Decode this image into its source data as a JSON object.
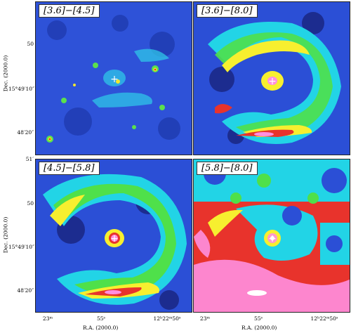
{
  "panels": [
    {
      "label": "[3.6]−[4.5]",
      "palette": "blue"
    },
    {
      "label": "[3.6]−[8.0]",
      "palette": "rainbow"
    },
    {
      "label": "[4.5]−[5.8]",
      "palette": "rainbow"
    },
    {
      "label": "[5.8]−[8.0]",
      "palette": "hot"
    }
  ],
  "axes": {
    "ylabel": "Dec. (2000.0)",
    "xlabel": "R.A. (2000.0)",
    "yticks": [
      "50",
      "15°49′10″",
      "48′20″"
    ],
    "ytop": "51′",
    "xticks": [
      "23ᵐ",
      "55ˢ",
      "12ʰ22ᵐ50ˢ"
    ]
  },
  "marker": "+",
  "colors": {
    "bg_blue": "#2b4fd6",
    "dark_blue": "#1c2c8f",
    "cyan": "#22d4e6",
    "green": "#4fe04a",
    "yellow": "#f7ef2f",
    "red": "#e8332c",
    "pink": "#ff8fe0",
    "white": "#ffffff"
  }
}
